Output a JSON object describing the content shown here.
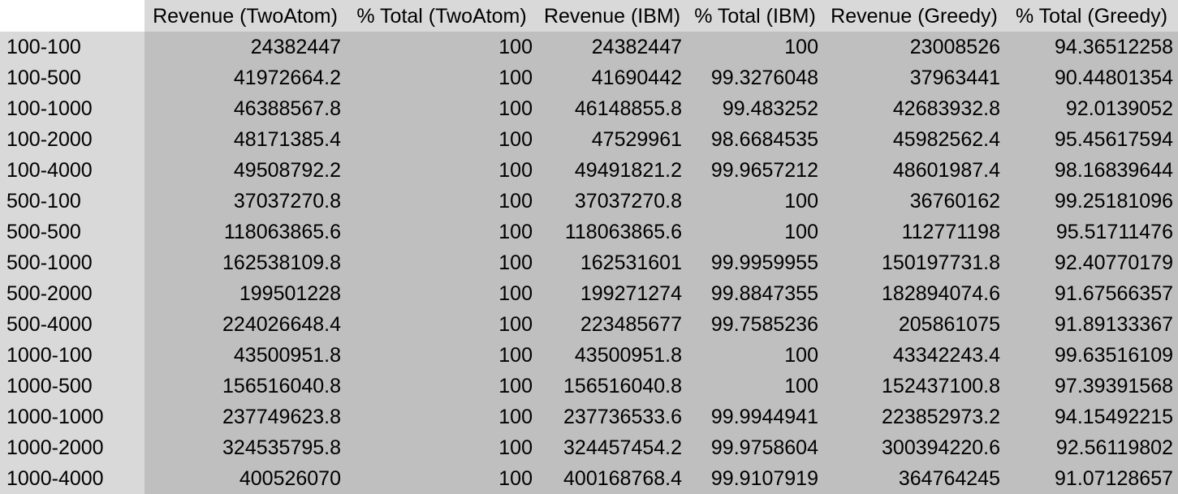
{
  "table": {
    "columns": [
      "",
      "Revenue (TwoAtom)",
      "% Total (TwoAtom)",
      "Revenue (IBM)",
      "% Total (IBM)",
      "Revenue (Greedy)",
      "% Total (Greedy)"
    ],
    "rows": [
      [
        "100-100",
        "24382447",
        "100",
        "24382447",
        "100",
        "23008526",
        "94.36512258"
      ],
      [
        "100-500",
        "41972664.2",
        "100",
        "41690442",
        "99.3276048",
        "37963441",
        "90.44801354"
      ],
      [
        "100-1000",
        "46388567.8",
        "100",
        "46148855.8",
        "99.483252",
        "42683932.8",
        "92.0139052"
      ],
      [
        "100-2000",
        "48171385.4",
        "100",
        "47529961",
        "98.6684535",
        "45982562.4",
        "95.45617594"
      ],
      [
        "100-4000",
        "49508792.2",
        "100",
        "49491821.2",
        "99.9657212",
        "48601987.4",
        "98.16839644"
      ],
      [
        "500-100",
        "37037270.8",
        "100",
        "37037270.8",
        "100",
        "36760162",
        "99.25181096"
      ],
      [
        "500-500",
        "118063865.6",
        "100",
        "118063865.6",
        "100",
        "112771198",
        "95.51711476"
      ],
      [
        "500-1000",
        "162538109.8",
        "100",
        "162531601",
        "99.9959955",
        "150197731.8",
        "92.40770179"
      ],
      [
        "500-2000",
        "199501228",
        "100",
        "199271274",
        "99.8847355",
        "182894074.6",
        "91.67566357"
      ],
      [
        "500-4000",
        "224026648.4",
        "100",
        "223485677",
        "99.7585236",
        "205861075",
        "91.89133367"
      ],
      [
        "1000-100",
        "43500951.8",
        "100",
        "43500951.8",
        "100",
        "43342243.4",
        "99.63516109"
      ],
      [
        "1000-500",
        "156516040.8",
        "100",
        "156516040.8",
        "100",
        "152437100.8",
        "97.39391568"
      ],
      [
        "1000-1000",
        "237749623.8",
        "100",
        "237736533.6",
        "99.9944941",
        "223852973.2",
        "94.15492215"
      ],
      [
        "1000-2000",
        "324535795.8",
        "100",
        "324457454.2",
        "99.9758604",
        "300394220.6",
        "92.56119802"
      ],
      [
        "1000-4000",
        "400526070",
        "100",
        "400168768.4",
        "99.9107919",
        "364764245",
        "91.07128657"
      ]
    ]
  },
  "colors": {
    "header_bg": "#d9d9d9",
    "row_label_bg": "#d9d9d9",
    "cell_bg": "#bfbfbf",
    "corner_bg": "#ffffff",
    "text": "#000000"
  }
}
